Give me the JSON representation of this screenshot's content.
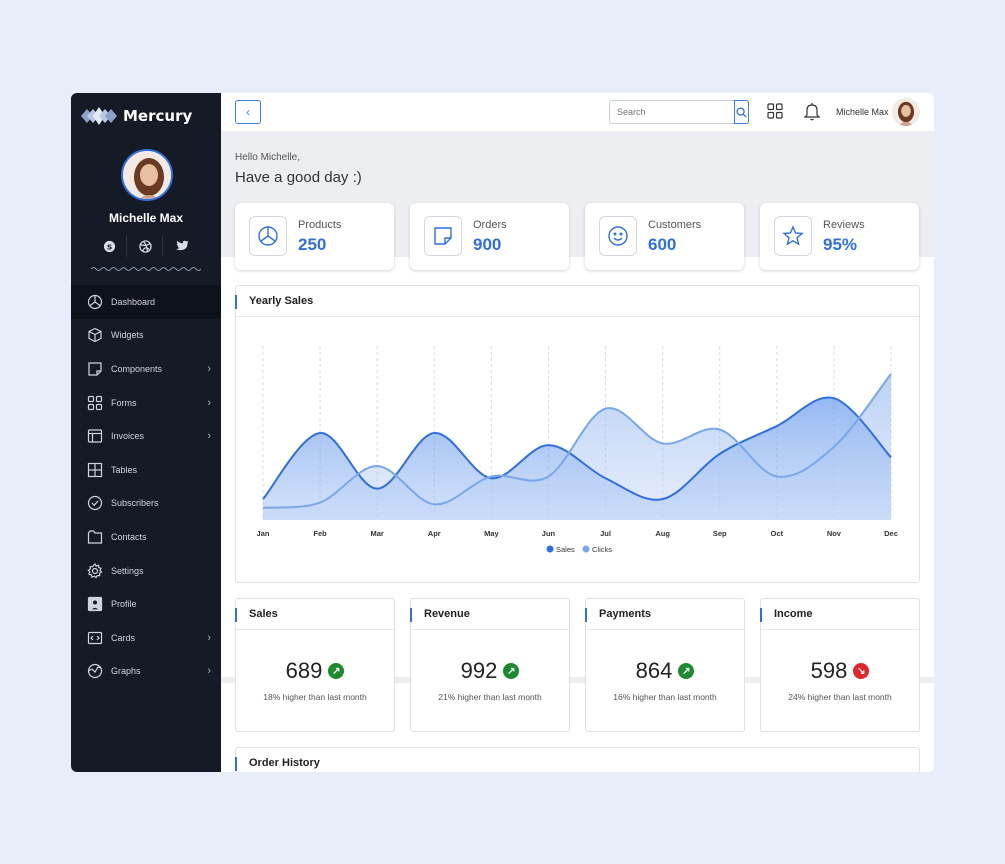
{
  "brand": {
    "name": "Mercury"
  },
  "sidebar": {
    "user_name": "Michelle Max",
    "socials": [
      "skype-icon",
      "dribbble-icon",
      "twitter-icon"
    ],
    "items": [
      {
        "label": "Dashboard",
        "icon": "pie-chart-icon",
        "active": true,
        "has_submenu": false
      },
      {
        "label": "Widgets",
        "icon": "cube-icon",
        "active": false,
        "has_submenu": false
      },
      {
        "label": "Components",
        "icon": "note-icon",
        "active": false,
        "has_submenu": true
      },
      {
        "label": "Forms",
        "icon": "grid-icon",
        "active": false,
        "has_submenu": true
      },
      {
        "label": "Invoices",
        "icon": "layout-icon",
        "active": false,
        "has_submenu": true
      },
      {
        "label": "Tables",
        "icon": "table-icon",
        "active": false,
        "has_submenu": false
      },
      {
        "label": "Subscribers",
        "icon": "check-circle-icon",
        "active": false,
        "has_submenu": false
      },
      {
        "label": "Contacts",
        "icon": "folder-icon",
        "active": false,
        "has_submenu": false
      },
      {
        "label": "Settings",
        "icon": "gear-icon",
        "active": false,
        "has_submenu": false
      },
      {
        "label": "Profile",
        "icon": "user-icon",
        "active": false,
        "has_submenu": false
      },
      {
        "label": "Cards",
        "icon": "code-icon",
        "active": false,
        "has_submenu": true
      },
      {
        "label": "Graphs",
        "icon": "graph-icon",
        "active": false,
        "has_submenu": true
      }
    ]
  },
  "topbar": {
    "search_placeholder": "Search",
    "user_name": "Michelle Max"
  },
  "greeting": {
    "small": "Hello Michelle,",
    "big": "Have a good day :)"
  },
  "stats": [
    {
      "label": "Products",
      "value": "250",
      "icon": "pie-chart-icon"
    },
    {
      "label": "Orders",
      "value": "900",
      "icon": "sticky-note-icon"
    },
    {
      "label": "Customers",
      "value": "600",
      "icon": "smiley-icon"
    },
    {
      "label": "Reviews",
      "value": "95%",
      "icon": "star-icon"
    }
  ],
  "yearly_sales": {
    "title": "Yearly Sales"
  },
  "chart_data": {
    "type": "area",
    "title": "Yearly Sales",
    "categories": [
      "Jan",
      "Feb",
      "Mar",
      "Apr",
      "May",
      "Jun",
      "Jul",
      "Aug",
      "Sep",
      "Oct",
      "Nov",
      "Dec"
    ],
    "ylim": [
      0,
      100
    ],
    "grid": "vertical",
    "legend": "bottom-center",
    "series": [
      {
        "name": "Sales",
        "color": "#2f6fe0",
        "values": [
          12,
          50,
          18,
          50,
          24,
          43,
          24,
          12,
          38,
          54,
          70,
          36
        ]
      },
      {
        "name": "Clicks",
        "color": "#79a7ea",
        "values": [
          7,
          10,
          31,
          9,
          25,
          25,
          64,
          44,
          52,
          25,
          42,
          84
        ]
      }
    ]
  },
  "metrics": [
    {
      "title": "Sales",
      "value": "689",
      "trend": "up",
      "sub": "18% higher than last month"
    },
    {
      "title": "Revenue",
      "value": "992",
      "trend": "up",
      "sub": "21% higher than last month"
    },
    {
      "title": "Payments",
      "value": "864",
      "trend": "up",
      "sub": "16% higher than last month"
    },
    {
      "title": "Income",
      "value": "598",
      "trend": "down",
      "sub": "24% higher than last month"
    }
  ],
  "order_history": {
    "title": "Order History"
  },
  "colors": {
    "accent": "#2f6fe0",
    "sidebar": "#151b26",
    "up": "#1e8a2e",
    "down": "#e0262a"
  }
}
